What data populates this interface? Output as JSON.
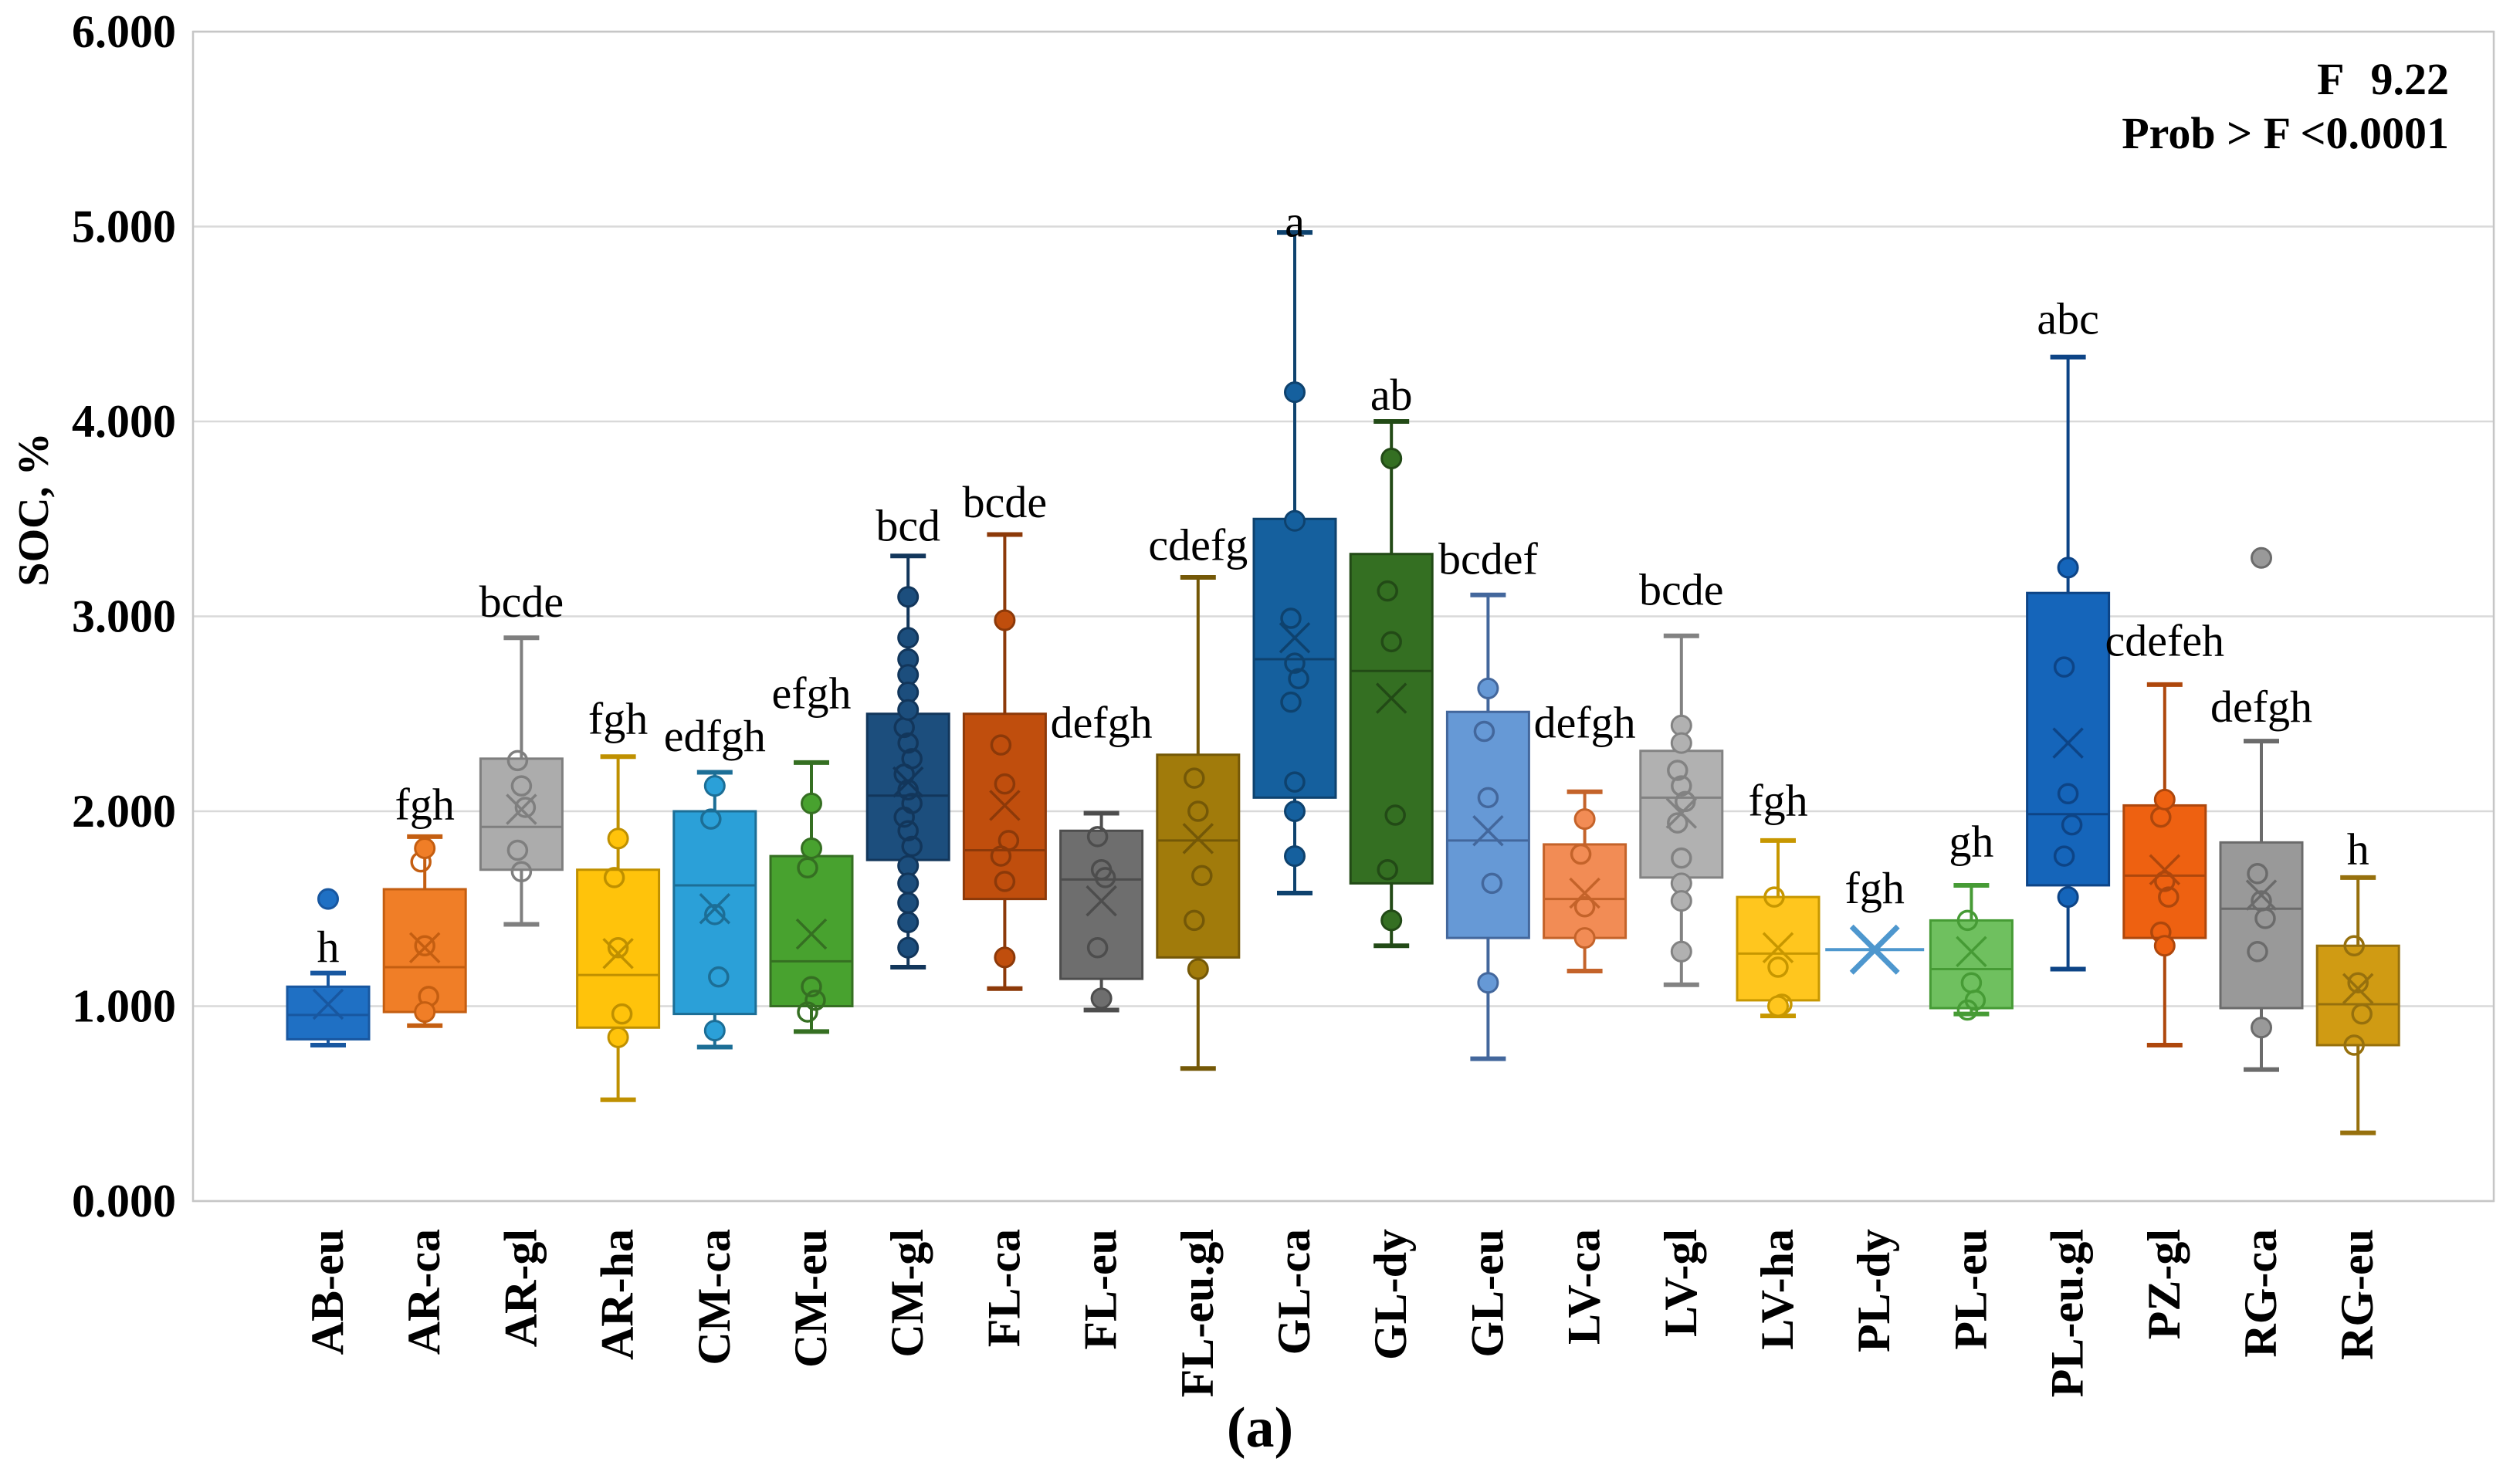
{
  "header": {
    "f_label": "F",
    "f_value": "9.22",
    "prob_label": "Prob > F",
    "prob_value": "<0.0001"
  },
  "caption": "(a)",
  "chart_data": {
    "type": "box",
    "title": "",
    "xlabel": "",
    "ylabel": "SOC, %",
    "ylim": [
      0,
      6
    ],
    "grid": true,
    "legend_position": "none",
    "grid_color": "#D9D9D9",
    "border_color": "#C6C6C6",
    "yticks": [
      {
        "value": 0,
        "label": "0.000"
      },
      {
        "value": 1,
        "label": "1.000"
      },
      {
        "value": 2,
        "label": "2.000"
      },
      {
        "value": 3,
        "label": "3.000"
      },
      {
        "value": 4,
        "label": "4.000"
      },
      {
        "value": 5,
        "label": "5.000"
      },
      {
        "value": 6,
        "label": "6.000"
      }
    ],
    "categories": [
      "AB-eu",
      "AR-ca",
      "AR-gl",
      "AR-ha",
      "CM-ca",
      "CM-eu",
      "CM-gl",
      "FL-ca",
      "FL-eu",
      "FL-eu.gl",
      "GL-ca",
      "GL-dy",
      "GL-eu",
      "LV-ca",
      "LV-gl",
      "LV-ha",
      "PL-dy",
      "PL-eu",
      "PL-eu.gl",
      "PZ-gl",
      "RG-ca",
      "RG-eu"
    ],
    "boxes": [
      {
        "label": "AB-eu",
        "letter": "h",
        "letter_y": 1.3,
        "fill": "#1F70C4",
        "stroke": "#1857A0",
        "low": 0.8,
        "q1": 0.83,
        "median": 0.955,
        "mean": 1.01,
        "q3": 1.1,
        "high": 1.17,
        "open_points": [],
        "filled_points": [],
        "outliers": [
          1.55
        ]
      },
      {
        "label": "AR-ca",
        "letter": "fgh",
        "letter_y": 2.03,
        "fill": "#F07E27",
        "stroke": "#C45E11",
        "low": 0.9,
        "q1": 0.97,
        "median": 1.2,
        "mean": 1.3,
        "q3": 1.6,
        "high": 1.87,
        "open_points": [
          1.74,
          1.31,
          1.05
        ],
        "filled_points": [
          1.81,
          0.97
        ],
        "outliers": []
      },
      {
        "label": "AR-gl",
        "letter": "bcde",
        "letter_y": 3.07,
        "fill": "#ACACAC",
        "stroke": "#7F7F7F",
        "low": 1.42,
        "q1": 1.7,
        "median": 1.92,
        "mean": 2.01,
        "q3": 2.27,
        "high": 2.89,
        "open_points": [
          2.26,
          2.13,
          2.02,
          1.8,
          1.69
        ],
        "filled_points": [],
        "outliers": []
      },
      {
        "label": "AR-ha",
        "letter": "fgh",
        "letter_y": 2.47,
        "fill": "#FFC30B",
        "stroke": "#BF9000",
        "low": 0.52,
        "q1": 0.89,
        "median": 1.16,
        "mean": 1.27,
        "q3": 1.7,
        "high": 2.28,
        "open_points": [
          1.66,
          1.3,
          0.96
        ],
        "filled_points": [
          1.86,
          0.84
        ],
        "outliers": []
      },
      {
        "label": "CM-ca",
        "letter": "edfgh",
        "letter_y": 2.38,
        "fill": "#2BA0D8",
        "stroke": "#1C6E96",
        "low": 0.79,
        "q1": 0.96,
        "median": 1.62,
        "mean": 1.5,
        "q3": 2.0,
        "high": 2.2,
        "open_points": [
          1.96,
          1.47,
          1.15
        ],
        "filled_points": [
          2.13,
          0.875
        ],
        "outliers": []
      },
      {
        "label": "CM-eu",
        "letter": "efgh",
        "letter_y": 2.6,
        "fill": "#48A22F",
        "stroke": "#356F22",
        "low": 0.87,
        "q1": 1.0,
        "median": 1.23,
        "mean": 1.37,
        "q3": 1.77,
        "high": 2.25,
        "open_points": [
          1.71,
          1.1,
          1.03,
          0.97
        ],
        "filled_points": [
          2.04,
          1.81
        ],
        "outliers": []
      },
      {
        "label": "CM-gl",
        "letter": "bcd",
        "letter_y": 3.46,
        "fill": "#1C4E7D",
        "stroke": "#12365B",
        "low": 1.2,
        "q1": 1.75,
        "median": 2.08,
        "mean": 2.15,
        "q3": 2.5,
        "high": 3.31,
        "open_points": [
          2.43,
          2.35,
          2.27,
          2.19,
          2.11,
          2.04,
          1.97,
          1.9,
          1.82
        ],
        "filled_points": [
          3.1,
          2.89,
          2.78,
          2.7,
          2.61,
          2.52,
          1.72,
          1.63,
          1.53,
          1.43,
          1.3
        ],
        "outliers": []
      },
      {
        "label": "FL-ca",
        "letter": "bcde",
        "letter_y": 3.58,
        "fill": "#C04E0D",
        "stroke": "#8C3909",
        "low": 1.09,
        "q1": 1.55,
        "median": 1.8,
        "mean": 2.03,
        "q3": 2.5,
        "high": 3.42,
        "open_points": [
          2.34,
          2.14,
          1.85,
          1.77,
          1.64
        ],
        "filled_points": [
          2.98,
          1.25
        ],
        "outliers": []
      },
      {
        "label": "FL-eu",
        "letter": "defgh",
        "letter_y": 2.45,
        "fill": "#6E6E6E",
        "stroke": "#4D4D4D",
        "low": 0.98,
        "q1": 1.14,
        "median": 1.65,
        "mean": 1.54,
        "q3": 1.9,
        "high": 1.99,
        "open_points": [
          1.87,
          1.7,
          1.66,
          1.3
        ],
        "filled_points": [
          1.04
        ],
        "outliers": []
      },
      {
        "label": "FL-eu.gl",
        "letter": "cdefg",
        "letter_y": 3.36,
        "fill": "#A17B0B",
        "stroke": "#745807",
        "low": 0.68,
        "q1": 1.25,
        "median": 1.85,
        "mean": 1.86,
        "q3": 2.29,
        "high": 3.2,
        "open_points": [
          2.17,
          2.0,
          1.67,
          1.44
        ],
        "filled_points": [
          1.19
        ],
        "outliers": []
      },
      {
        "label": "GL-ca",
        "letter": "a",
        "letter_y": 5.02,
        "fill": "#15609E",
        "stroke": "#0E426E",
        "low": 1.58,
        "q1": 2.07,
        "median": 2.78,
        "mean": 2.89,
        "q3": 3.5,
        "high": 4.97,
        "open_points": [
          2.99,
          2.76,
          2.68,
          2.56,
          2.15
        ],
        "filled_points": [
          4.15,
          3.49,
          2.0,
          1.77
        ],
        "outliers": []
      },
      {
        "label": "GL-dy",
        "letter": "ab",
        "letter_y": 4.13,
        "fill": "#346F22",
        "stroke": "#224A16",
        "low": 1.31,
        "q1": 1.63,
        "median": 2.72,
        "mean": 2.58,
        "q3": 3.32,
        "high": 4.0,
        "open_points": [
          3.13,
          2.87,
          1.98,
          1.7
        ],
        "filled_points": [
          3.81,
          1.44
        ],
        "outliers": []
      },
      {
        "label": "GL-eu",
        "letter": "bcdef",
        "letter_y": 3.29,
        "fill": "#6699D6",
        "stroke": "#43679C",
        "low": 0.73,
        "q1": 1.35,
        "median": 1.85,
        "mean": 1.9,
        "q3": 2.51,
        "high": 3.11,
        "open_points": [
          2.41,
          2.07,
          1.63
        ],
        "filled_points": [
          2.63,
          1.12
        ],
        "outliers": []
      },
      {
        "label": "LV-ca",
        "letter": "defgh",
        "letter_y": 2.45,
        "fill": "#F28C55",
        "stroke": "#C4632A",
        "low": 1.18,
        "q1": 1.35,
        "median": 1.55,
        "mean": 1.58,
        "q3": 1.83,
        "high": 2.1,
        "open_points": [
          1.78,
          1.51
        ],
        "filled_points": [
          1.96,
          1.35
        ],
        "outliers": []
      },
      {
        "label": "LV-gl",
        "letter": "bcde",
        "letter_y": 3.13,
        "fill": "#B1B1B1",
        "stroke": "#828282",
        "low": 1.11,
        "q1": 1.66,
        "median": 2.07,
        "mean": 1.99,
        "q3": 2.31,
        "high": 2.9,
        "open_points": [
          2.21,
          2.13,
          2.05,
          1.94,
          1.76
        ],
        "filled_points": [
          2.44,
          2.35,
          1.63,
          1.54,
          1.28
        ],
        "outliers": []
      },
      {
        "label": "LV-ha",
        "letter": "fgh",
        "letter_y": 2.05,
        "fill": "#FFC61E",
        "stroke": "#C79700",
        "low": 0.95,
        "q1": 1.03,
        "median": 1.27,
        "mean": 1.3,
        "q3": 1.56,
        "high": 1.85,
        "open_points": [
          1.56,
          1.2,
          1.01
        ],
        "filled_points": [
          1.0
        ],
        "outliers": []
      },
      {
        "label": "PL-dy",
        "letter": "fgh",
        "letter_y": 1.6,
        "fill": "#4E97CE",
        "stroke": "#4E97CE",
        "marker_only": true,
        "median": 1.29,
        "mean": 1.29,
        "open_points": [],
        "filled_points": [],
        "outliers": []
      },
      {
        "label": "PL-eu",
        "letter": "gh",
        "letter_y": 1.84,
        "fill": "#6FC05F",
        "stroke": "#469B35",
        "low": 0.96,
        "q1": 0.99,
        "median": 1.19,
        "mean": 1.28,
        "q3": 1.44,
        "high": 1.62,
        "open_points": [
          1.44,
          1.12,
          1.03,
          0.98
        ],
        "filled_points": [],
        "outliers": []
      },
      {
        "label": "PL-eu.gl",
        "letter": "abc",
        "letter_y": 4.52,
        "fill": "#1565BA",
        "stroke": "#0D4486",
        "low": 1.19,
        "q1": 1.62,
        "median": 1.985,
        "mean": 2.35,
        "q3": 3.12,
        "high": 4.33,
        "open_points": [
          2.74,
          2.09,
          1.93,
          1.77
        ],
        "filled_points": [
          3.25,
          1.56
        ],
        "outliers": []
      },
      {
        "label": "PZ-gl",
        "letter": "cdefeh",
        "letter_y": 2.87,
        "fill": "#EE6111",
        "stroke": "#AE470C",
        "low": 0.8,
        "q1": 1.35,
        "median": 1.67,
        "mean": 1.7,
        "q3": 2.03,
        "high": 2.65,
        "open_points": [
          1.97,
          1.64,
          1.56,
          1.38
        ],
        "filled_points": [
          2.06,
          1.31
        ],
        "outliers": []
      },
      {
        "label": "RG-ca",
        "letter": "defgh",
        "letter_y": 2.53,
        "fill": "#999999",
        "stroke": "#6B6B6B",
        "low": 0.675,
        "q1": 0.99,
        "median": 1.5,
        "mean": 1.57,
        "q3": 1.84,
        "high": 2.36,
        "open_points": [
          1.68,
          1.54,
          1.45,
          1.28
        ],
        "filled_points": [
          0.89
        ],
        "outliers": [
          3.3
        ]
      },
      {
        "label": "RG-eu",
        "letter": "h",
        "letter_y": 1.8,
        "fill": "#D09B13",
        "stroke": "#96700D",
        "low": 0.35,
        "q1": 0.8,
        "median": 1.01,
        "mean": 1.09,
        "q3": 1.31,
        "high": 1.66,
        "open_points": [
          1.31,
          1.12,
          0.96,
          0.8
        ],
        "filled_points": [],
        "outliers": []
      }
    ]
  }
}
